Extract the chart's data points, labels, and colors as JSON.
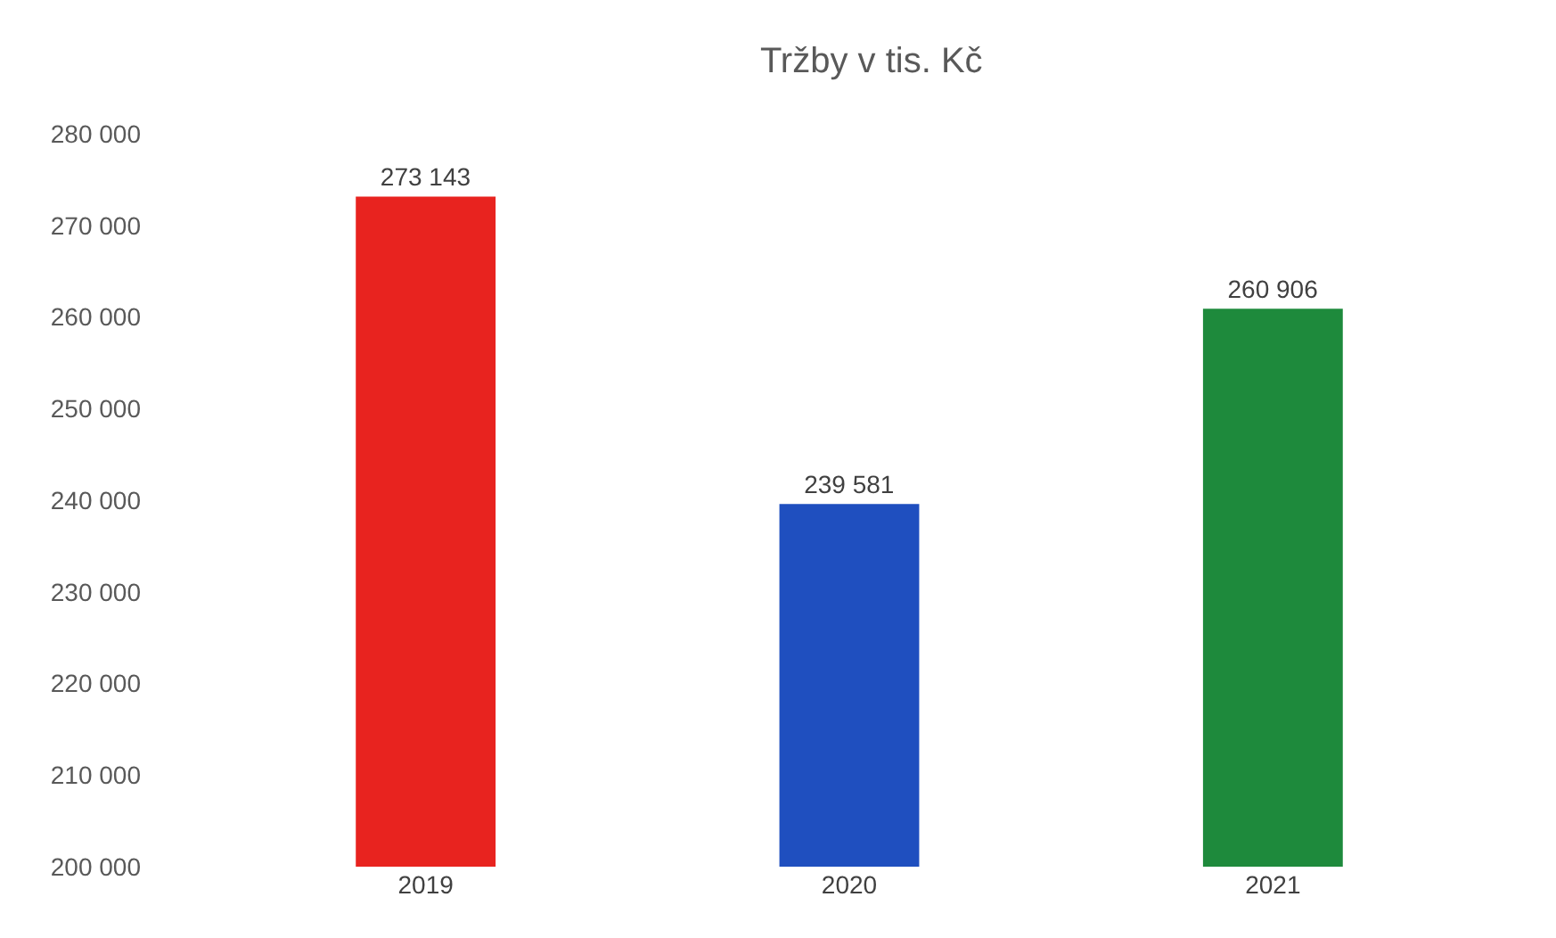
{
  "chart_data": {
    "type": "bar",
    "title": "Tržby v tis. Kč",
    "categories": [
      "2019",
      "2020",
      "2021"
    ],
    "values": [
      273143,
      239581,
      260906
    ],
    "colors": [
      "#e8231f",
      "#1f4fbf",
      "#1e8a3c"
    ],
    "value_labels": [
      "273 143",
      "239 581",
      "260 906"
    ],
    "ylim": [
      200000,
      280000
    ],
    "yticks": [
      {
        "value": 200000,
        "label": "200 000"
      },
      {
        "value": 210000,
        "label": "210 000"
      },
      {
        "value": 220000,
        "label": "220 000"
      },
      {
        "value": 230000,
        "label": "230 000"
      },
      {
        "value": 240000,
        "label": "240 000"
      },
      {
        "value": 250000,
        "label": "250 000"
      },
      {
        "value": 260000,
        "label": "260 000"
      },
      {
        "value": 270000,
        "label": "270 000"
      },
      {
        "value": 280000,
        "label": "280 000"
      }
    ]
  }
}
